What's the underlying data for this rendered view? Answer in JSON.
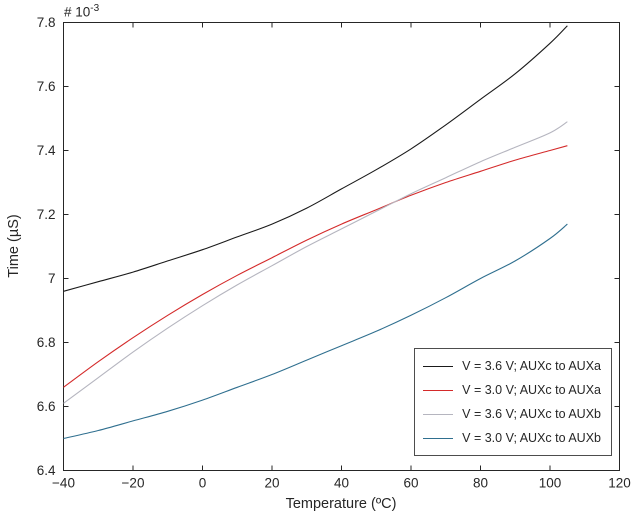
{
  "figure": {
    "exponent_prefix": "# 10",
    "exponent_sup": "-3"
  },
  "chart_data": {
    "type": "line",
    "title": "",
    "xlabel": "Temperature (ºC)",
    "ylabel": "Time (µS)",
    "y_multiplier": "1e-3",
    "xlim": [
      -40,
      120
    ],
    "ylim": [
      6.4,
      7.8
    ],
    "xticks": [
      -40,
      -20,
      0,
      20,
      40,
      60,
      80,
      100,
      120
    ],
    "yticks": [
      6.4,
      6.6,
      6.8,
      7,
      7.2,
      7.4,
      7.6,
      7.8
    ],
    "grid": false,
    "legend_position": "lower right",
    "x": [
      -40,
      -30,
      -20,
      -10,
      0,
      10,
      20,
      30,
      40,
      50,
      60,
      70,
      80,
      90,
      100,
      105
    ],
    "series": [
      {
        "name": "V = 3.6 V; AUXc to AUXa",
        "color": "#1a1a1a",
        "values": [
          6.96,
          6.99,
          7.02,
          7.055,
          7.09,
          7.13,
          7.17,
          7.22,
          7.28,
          7.34,
          7.405,
          7.48,
          7.56,
          7.64,
          7.735,
          7.79
        ]
      },
      {
        "name": "V = 3.0 V; AUXc to AUXa",
        "color": "#d42a2a",
        "values": [
          6.66,
          6.74,
          6.815,
          6.885,
          6.95,
          7.01,
          7.065,
          7.12,
          7.17,
          7.215,
          7.26,
          7.3,
          7.335,
          7.37,
          7.4,
          7.415
        ]
      },
      {
        "name": "V = 3.6 V; AUXc to AUXb",
        "color": "#b5b5bf",
        "values": [
          6.61,
          6.69,
          6.77,
          6.845,
          6.915,
          6.98,
          7.04,
          7.1,
          7.155,
          7.21,
          7.265,
          7.315,
          7.365,
          7.41,
          7.455,
          7.49
        ]
      },
      {
        "name": "V = 3.0 V; AUXc to AUXb",
        "color": "#2f6f8f",
        "values": [
          6.5,
          6.525,
          6.555,
          6.585,
          6.62,
          6.66,
          6.7,
          6.745,
          6.79,
          6.835,
          6.885,
          6.94,
          7.0,
          7.055,
          7.125,
          7.17
        ]
      }
    ]
  }
}
